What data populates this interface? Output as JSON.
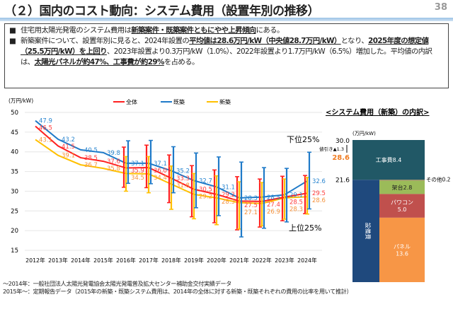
{
  "header": {
    "title": "（２）国内のコスト動向：システム費用（設置年別の推移）",
    "page": "38"
  },
  "summary": {
    "b1": [
      "住宅用太陽光発電のシステム費用は",
      "新築案件・既築案件ともにやや上昇傾向",
      "にある。"
    ],
    "b2": [
      "新築案件について、設置年別に見ると、2024年設置の",
      "平均値は28.6万円/kW（中央値28.7万円/kW）",
      "となり、",
      "2025年度の想定値（25.5万円/kW）を上回り",
      "、2023年設置より0.3万円/kW（1.0%）、2022年設置より1.7万円/kW（6.5%）増加した。平均値の内訳は、",
      "太陽光パネルが約47%、工事費が約29%",
      "を占める。"
    ],
    "bullet": "■"
  },
  "chart_data": [
    {
      "type": "line",
      "ylabel": "(万円/kW)",
      "ylim": [
        15,
        50
      ],
      "yticks": [
        15,
        20,
        25,
        30,
        35,
        40,
        45,
        50
      ],
      "grid": true,
      "legend": "top",
      "categories": [
        "2012年",
        "2013年",
        "2014年",
        "2015年",
        "2016年",
        "2017年",
        "2018年",
        "2019年",
        "2020年",
        "2021年",
        "2022年",
        "2023年",
        "2024年"
      ],
      "series": [
        {
          "name": "全体",
          "color": "#ff2020",
          "labelColor": "#ff3b3b",
          "values": [
            46.5,
            41.5,
            38.5,
            37.6,
            35.9,
            36.0,
            33.3,
            30.5,
            29.2,
            27.5,
            27.4,
            28.5,
            29.5
          ],
          "upper": [
            null,
            null,
            null,
            null,
            41.2,
            41.7,
            39.2,
            36.5,
            35.4,
            33.7,
            33.1,
            33.8,
            34.0
          ],
          "lower": [
            null,
            null,
            null,
            null,
            31.0,
            30.9,
            27.1,
            23.5,
            22.0,
            20.2,
            20.9,
            22.5,
            24.3
          ]
        },
        {
          "name": "既築",
          "color": "#1f7ac8",
          "labelColor": "#2a86d0",
          "values": [
            47.9,
            43.2,
            40.5,
            39.8,
            37.1,
            37.1,
            35.2,
            32.7,
            31.1,
            28.3,
            28.5,
            29.1,
            32.6
          ],
          "upper": [
            null,
            null,
            null,
            null,
            42.8,
            42.9,
            41.3,
            39.7,
            38.7,
            37.4,
            36.0,
            35.8,
            39.9
          ],
          "lower": [
            null,
            null,
            null,
            null,
            32.0,
            31.9,
            29.6,
            25.8,
            23.8,
            18.4,
            20.6,
            22.2,
            25.5
          ]
        },
        {
          "name": "新築",
          "color": "#ffc000",
          "labelColor": "#f5913a",
          "values": [
            43.1,
            39.1,
            36.7,
            35.8,
            34.5,
            34.4,
            31.8,
            29.2,
            28.3,
            27.1,
            26.9,
            28.3,
            28.6
          ],
          "upper": [
            null,
            null,
            null,
            null,
            38.8,
            38.8,
            36.4,
            34.5,
            33.9,
            32.4,
            32.2,
            33.1,
            33.5
          ],
          "lower": [
            null,
            null,
            null,
            null,
            30.0,
            29.6,
            25.4,
            23.0,
            21.5,
            20.4,
            21.2,
            22.9,
            24.2
          ]
        }
      ],
      "annotations": [
        "下位25%",
        "上位25%"
      ]
    },
    {
      "type": "bar",
      "title": "<システム費用（新築）の内訳>",
      "ylabel": "(万円/kW)",
      "stacked": true,
      "total_before": "30.0",
      "discount": "値引き▲1.3",
      "total": "28.6",
      "equipment_total": "21.6",
      "segments": [
        {
          "name": "工事費",
          "value": 8.4,
          "color": "#215866",
          "label": "工事費8.4"
        },
        {
          "name": "その他",
          "value": 0.2,
          "color": "#a08a5a",
          "label": "その他0.2"
        },
        {
          "name": "架台",
          "value": 2.8,
          "color": "#9bbb59",
          "label": "架台2.8"
        },
        {
          "name": "パワコン",
          "value": 5.0,
          "color": "#c0504d",
          "label": "パワコン",
          "valueLabel": "5.0"
        },
        {
          "name": "パネル",
          "value": 13.6,
          "color": "#f79646",
          "label": "パネル",
          "valueLabel": "13.6"
        }
      ],
      "equipment": {
        "name": "設備費",
        "color": "#1f497d",
        "label": "設備費"
      }
    }
  ],
  "footnotes": [
    "～2014年：一般社団法人太陽光発電協会太陽光発電普及拡大センター補助金交付実績データ",
    "2015年～：定期報告データ（2015年の新築・既築システム費用は、2014年の全体に対する新築・既築それぞれの費用の比率を用いて推計）"
  ]
}
